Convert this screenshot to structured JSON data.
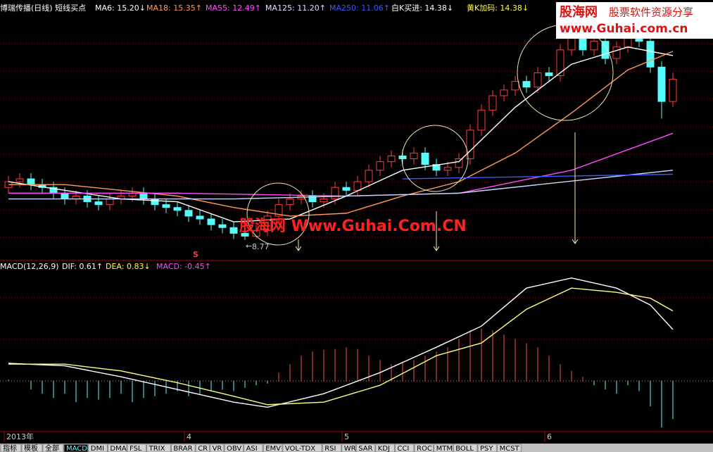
{
  "header": {
    "items": [
      {
        "text": "博瑞传播(日线) 短线买点",
        "color": "#ffffff"
      },
      {
        "text": "MA6: 15.20↓",
        "color": "#ffffff"
      },
      {
        "text": "MA18: 15.35↑",
        "color": "#ff9a5a"
      },
      {
        "text": "MA55: 12.49↑",
        "color": "#ff4dff"
      },
      {
        "text": "MA125: 11.20↑",
        "color": "#e0e0ff"
      },
      {
        "text": "MA250: 11.06↑",
        "color": "#3a5aff"
      },
      {
        "text": "白K买进: 14.38↓",
        "color": "#ffffff"
      },
      {
        "text": "黄K加码: 14.38↓",
        "color": "#ffff40"
      }
    ]
  },
  "watermark": {
    "logo": "股海网",
    "slogan": "股票软件资源分享",
    "url": "www.Guhai.com.cn",
    "center": "股海网 Www.Guhai.Com.CN"
  },
  "macd_header": [
    {
      "text": "MACD(12,26,9)",
      "color": "#ffffff"
    },
    {
      "text": "DIF: 0.61↑",
      "color": "#ffffff"
    },
    {
      "text": "DEA: 0.83↓",
      "color": "#ffff40"
    },
    {
      "text": "MACD: -0.45↑",
      "color": "#ff4dff"
    }
  ],
  "tabs": [
    "指标",
    "模板",
    "全部",
    "MACD",
    "DMI",
    "DMA",
    "FSL",
    "TRIX",
    "BRAR",
    "CR",
    "VR",
    "OBV",
    "ASI",
    "EMV",
    "VOL-TDX",
    "RSI",
    "WR",
    "SAR",
    "KDJ",
    "CCI",
    "ROC",
    "MTM",
    "BOLL",
    "PSY",
    "MCST"
  ],
  "signal": "S",
  "low_label": "8.77",
  "chart_data": [
    {
      "type": "candlestick",
      "categories": [
        "2013年",
        null,
        null,
        null,
        null,
        null,
        null,
        null,
        null,
        null,
        null,
        null,
        null,
        null,
        null,
        null,
        "4",
        null,
        null,
        null,
        null,
        null,
        null,
        null,
        null,
        null,
        null,
        null,
        null,
        null,
        "5",
        null,
        null,
        null,
        null,
        null,
        null,
        null,
        null,
        null,
        null,
        null,
        null,
        null,
        null,
        null,
        null,
        null,
        "6",
        null,
        null,
        null,
        null,
        null,
        null,
        null,
        null,
        null,
        null,
        null
      ],
      "open": [
        10.6,
        10.8,
        10.9,
        10.7,
        10.6,
        10.4,
        10.2,
        10.3,
        10.1,
        10.0,
        10.2,
        10.3,
        10.4,
        10.2,
        10.0,
        9.9,
        9.8,
        9.6,
        9.5,
        9.3,
        9.2,
        9.0,
        8.9,
        9.1,
        9.6,
        10.0,
        10.2,
        10.3,
        10.1,
        10.2,
        10.6,
        10.5,
        10.8,
        11.2,
        11.5,
        11.7,
        11.6,
        11.8,
        11.4,
        11.2,
        11.3,
        11.6,
        12.6,
        13.3,
        13.8,
        14.0,
        14.3,
        14.1,
        14.6,
        14.5,
        15.4,
        15.9,
        15.4,
        15.7,
        15.1,
        15.5,
        15.8,
        15.7,
        14.8,
        13.6
      ],
      "high": [
        11.0,
        11.1,
        11.1,
        10.9,
        10.8,
        10.6,
        10.5,
        10.5,
        10.3,
        10.4,
        10.5,
        10.6,
        10.6,
        10.4,
        10.2,
        10.1,
        10.0,
        9.8,
        9.7,
        9.5,
        9.4,
        9.2,
        9.3,
        9.8,
        10.2,
        10.4,
        10.5,
        10.5,
        10.4,
        10.8,
        10.8,
        11.0,
        11.4,
        11.7,
        11.9,
        11.9,
        12.0,
        12.0,
        11.6,
        11.5,
        11.8,
        12.8,
        13.5,
        14.0,
        14.2,
        14.5,
        14.5,
        14.8,
        14.8,
        15.6,
        16.1,
        16.1,
        15.9,
        15.9,
        15.7,
        16.0,
        16.0,
        15.9,
        15.0,
        14.6
      ],
      "low": [
        10.4,
        10.6,
        10.5,
        10.4,
        10.2,
        10.0,
        10.0,
        9.9,
        9.8,
        9.8,
        10.0,
        10.1,
        10.0,
        9.8,
        9.7,
        9.6,
        9.4,
        9.3,
        9.1,
        9.0,
        8.8,
        8.77,
        8.8,
        8.9,
        9.4,
        9.8,
        10.0,
        9.9,
        9.9,
        10.0,
        10.3,
        10.3,
        10.6,
        11.0,
        11.3,
        11.4,
        11.4,
        11.2,
        11.0,
        11.0,
        11.1,
        11.4,
        12.4,
        13.1,
        13.6,
        13.8,
        13.9,
        13.9,
        14.3,
        14.3,
        15.2,
        15.2,
        15.2,
        14.9,
        14.9,
        15.3,
        15.5,
        14.6,
        13.0,
        13.4
      ],
      "close": [
        10.8,
        10.9,
        10.7,
        10.6,
        10.4,
        10.2,
        10.3,
        10.1,
        10.0,
        10.2,
        10.3,
        10.4,
        10.2,
        10.0,
        9.9,
        9.8,
        9.6,
        9.5,
        9.3,
        9.2,
        9.0,
        8.9,
        9.1,
        9.6,
        10.0,
        10.2,
        10.3,
        10.1,
        10.2,
        10.6,
        10.5,
        10.8,
        11.2,
        11.5,
        11.7,
        11.6,
        11.8,
        11.4,
        11.2,
        11.3,
        11.6,
        12.6,
        13.3,
        13.8,
        14.0,
        14.3,
        14.1,
        14.6,
        14.5,
        15.4,
        15.9,
        15.4,
        15.7,
        15.1,
        15.5,
        15.8,
        15.7,
        14.8,
        13.6,
        14.38
      ],
      "up_color": "#ff3c3c",
      "down_color": "#54fcfc",
      "ylim": [
        8.1,
        16.6
      ],
      "series": [
        {
          "name": "MA6",
          "color": "#ffffff",
          "x": [
            0,
            5,
            10,
            15,
            20,
            25,
            30,
            35,
            40,
            45,
            50,
            55,
            59
          ],
          "values": [
            10.8,
            10.5,
            10.2,
            10.1,
            9.4,
            9.5,
            10.3,
            11.2,
            11.5,
            13.4,
            14.9,
            15.5,
            15.2
          ]
        },
        {
          "name": "MA18",
          "color": "#ff9a5a",
          "x": [
            0,
            5,
            10,
            15,
            20,
            25,
            30,
            35,
            40,
            45,
            50,
            55,
            59
          ],
          "values": [
            10.7,
            10.7,
            10.5,
            10.3,
            9.9,
            9.6,
            9.7,
            10.3,
            10.8,
            11.8,
            13.2,
            14.7,
            15.35
          ]
        },
        {
          "name": "MA55",
          "color": "#ff4dff",
          "x": [
            0,
            15,
            30,
            40,
            50,
            59
          ],
          "values": [
            10.4,
            10.4,
            10.3,
            10.4,
            11.2,
            12.49
          ]
        },
        {
          "name": "MA125",
          "color": "#c8d8ff",
          "x": [
            0,
            20,
            40,
            59
          ],
          "values": [
            10.2,
            10.2,
            10.4,
            11.2
          ]
        },
        {
          "name": "MA250",
          "color": "#3a5aff",
          "x": [
            35,
            59
          ],
          "values": [
            10.9,
            11.06
          ]
        }
      ]
    },
    {
      "type": "macd",
      "ylim": [
        -0.59,
        1.41
      ],
      "hist_up_color": "#ff5050",
      "hist_down_color": "#54fcfc",
      "histogram": [
        0.02,
        0.0,
        -0.1,
        -0.15,
        -0.2,
        -0.15,
        -0.25,
        -0.2,
        -0.22,
        -0.2,
        -0.15,
        -0.25,
        -0.2,
        -0.18,
        -0.15,
        -0.12,
        -0.18,
        -0.15,
        -0.12,
        -0.1,
        -0.12,
        -0.08,
        -0.05,
        -0.03,
        0.1,
        0.2,
        0.3,
        0.35,
        0.37,
        0.38,
        0.4,
        0.38,
        0.3,
        0.25,
        0.2,
        0.22,
        0.25,
        0.3,
        0.35,
        0.4,
        0.5,
        0.6,
        0.62,
        0.6,
        0.55,
        0.5,
        0.45,
        0.4,
        0.3,
        0.2,
        0.12,
        0.05,
        -0.05,
        -0.1,
        -0.15,
        -0.05,
        -0.12,
        -0.3,
        -0.55,
        -0.45
      ],
      "series": [
        {
          "name": "DIF",
          "color": "#ffffff",
          "x": [
            0,
            5,
            10,
            15,
            20,
            23,
            28,
            33,
            38,
            42,
            46,
            50,
            54,
            57,
            59
          ],
          "values": [
            0.21,
            0.18,
            0.05,
            -0.1,
            -0.25,
            -0.31,
            -0.15,
            0.1,
            0.4,
            0.65,
            1.1,
            1.22,
            1.1,
            0.9,
            0.61
          ]
        },
        {
          "name": "DEA",
          "color": "#ffff80",
          "x": [
            0,
            5,
            10,
            15,
            20,
            23,
            28,
            33,
            38,
            42,
            46,
            50,
            54,
            57,
            59
          ],
          "values": [
            0.2,
            0.2,
            0.12,
            -0.02,
            -0.18,
            -0.28,
            -0.25,
            -0.05,
            0.3,
            0.45,
            0.85,
            1.1,
            1.05,
            0.98,
            0.83
          ]
        }
      ]
    }
  ]
}
